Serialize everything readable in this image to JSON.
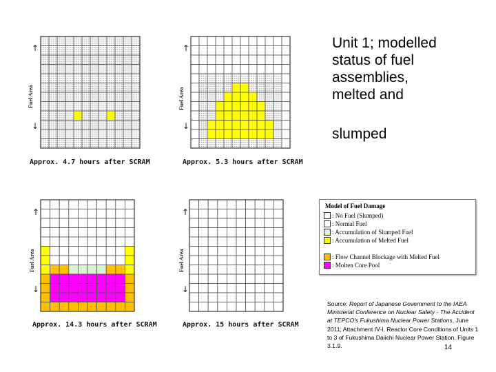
{
  "colors": {
    "grid_line": "#555555",
    "empty_cell": "#ffffff",
    "hatched_cell": "#d8d8d8",
    "no_fuel": "#ffffff",
    "normal_fuel": "#ffffff",
    "slumped": "#d6f5d0",
    "melted": "#ffff00",
    "flow_blockage": "#ffc000",
    "molten_pool": "#ff00ff"
  },
  "fuel_area_label": "Fuel Area",
  "panels": [
    {
      "caption": "Approx. 4.7 hours after SCRAM",
      "hatched": true,
      "cells": [
        {
          "r": 8,
          "c": 4,
          "s": "melted"
        },
        {
          "r": 8,
          "c": 8,
          "s": "melted"
        }
      ]
    },
    {
      "caption": "Approx. 5.3 hours after SCRAM",
      "hatched": true,
      "blank_top_rows": 4,
      "blank_cols": [
        0,
        11
      ],
      "cells": [
        {
          "r": 5,
          "c": 5,
          "s": "melted"
        },
        {
          "r": 5,
          "c": 6,
          "s": "melted"
        },
        {
          "r": 6,
          "c": 4,
          "s": "melted"
        },
        {
          "r": 6,
          "c": 5,
          "s": "melted"
        },
        {
          "r": 6,
          "c": 6,
          "s": "melted"
        },
        {
          "r": 6,
          "c": 7,
          "s": "melted"
        },
        {
          "r": 7,
          "c": 3,
          "s": "melted"
        },
        {
          "r": 7,
          "c": 4,
          "s": "melted"
        },
        {
          "r": 7,
          "c": 5,
          "s": "melted"
        },
        {
          "r": 7,
          "c": 6,
          "s": "melted"
        },
        {
          "r": 7,
          "c": 7,
          "s": "melted"
        },
        {
          "r": 7,
          "c": 8,
          "s": "melted"
        },
        {
          "r": 8,
          "c": 3,
          "s": "melted"
        },
        {
          "r": 8,
          "c": 4,
          "s": "melted"
        },
        {
          "r": 8,
          "c": 5,
          "s": "melted"
        },
        {
          "r": 8,
          "c": 6,
          "s": "melted"
        },
        {
          "r": 8,
          "c": 7,
          "s": "melted"
        },
        {
          "r": 8,
          "c": 8,
          "s": "melted"
        },
        {
          "r": 9,
          "c": 2,
          "s": "melted"
        },
        {
          "r": 9,
          "c": 3,
          "s": "melted"
        },
        {
          "r": 9,
          "c": 4,
          "s": "melted"
        },
        {
          "r": 9,
          "c": 5,
          "s": "melted"
        },
        {
          "r": 9,
          "c": 6,
          "s": "melted"
        },
        {
          "r": 9,
          "c": 7,
          "s": "melted"
        },
        {
          "r": 9,
          "c": 8,
          "s": "melted"
        },
        {
          "r": 9,
          "c": 9,
          "s": "melted"
        },
        {
          "r": 10,
          "c": 2,
          "s": "melted"
        },
        {
          "r": 10,
          "c": 3,
          "s": "melted"
        },
        {
          "r": 10,
          "c": 4,
          "s": "melted"
        },
        {
          "r": 10,
          "c": 5,
          "s": "melted"
        },
        {
          "r": 10,
          "c": 6,
          "s": "melted"
        },
        {
          "r": 10,
          "c": 7,
          "s": "melted"
        },
        {
          "r": 10,
          "c": 8,
          "s": "melted"
        },
        {
          "r": 10,
          "c": 9,
          "s": "melted"
        }
      ]
    },
    {
      "caption": "Approx. 14.3 hours after SCRAM",
      "hatched": false,
      "blank_top_rows": 5,
      "cells": [
        {
          "r": 5,
          "c": 0,
          "s": "melted"
        },
        {
          "r": 5,
          "c": 9,
          "s": "melted"
        },
        {
          "r": 6,
          "c": 0,
          "s": "melted"
        },
        {
          "r": 6,
          "c": 9,
          "s": "melted"
        },
        {
          "r": 7,
          "c": 0,
          "s": "melted"
        },
        {
          "r": 7,
          "c": 1,
          "s": "flow_blockage"
        },
        {
          "r": 7,
          "c": 2,
          "s": "flow_blockage"
        },
        {
          "r": 7,
          "c": 3,
          "s": "slumped"
        },
        {
          "r": 7,
          "c": 4,
          "s": "slumped"
        },
        {
          "r": 7,
          "c": 5,
          "s": "slumped"
        },
        {
          "r": 7,
          "c": 6,
          "s": "slumped"
        },
        {
          "r": 7,
          "c": 7,
          "s": "flow_blockage"
        },
        {
          "r": 7,
          "c": 8,
          "s": "flow_blockage"
        },
        {
          "r": 7,
          "c": 9,
          "s": "melted"
        },
        {
          "r": 8,
          "c": 0,
          "s": "flow_blockage"
        },
        {
          "r": 8,
          "c": 1,
          "s": "molten_pool"
        },
        {
          "r": 8,
          "c": 2,
          "s": "molten_pool"
        },
        {
          "r": 8,
          "c": 3,
          "s": "molten_pool"
        },
        {
          "r": 8,
          "c": 4,
          "s": "molten_pool"
        },
        {
          "r": 8,
          "c": 5,
          "s": "molten_pool"
        },
        {
          "r": 8,
          "c": 6,
          "s": "molten_pool"
        },
        {
          "r": 8,
          "c": 7,
          "s": "molten_pool"
        },
        {
          "r": 8,
          "c": 8,
          "s": "molten_pool"
        },
        {
          "r": 8,
          "c": 9,
          "s": "flow_blockage"
        },
        {
          "r": 9,
          "c": 0,
          "s": "flow_blockage"
        },
        {
          "r": 9,
          "c": 1,
          "s": "molten_pool"
        },
        {
          "r": 9,
          "c": 2,
          "s": "molten_pool"
        },
        {
          "r": 9,
          "c": 3,
          "s": "molten_pool"
        },
        {
          "r": 9,
          "c": 4,
          "s": "molten_pool"
        },
        {
          "r": 9,
          "c": 5,
          "s": "molten_pool"
        },
        {
          "r": 9,
          "c": 6,
          "s": "molten_pool"
        },
        {
          "r": 9,
          "c": 7,
          "s": "molten_pool"
        },
        {
          "r": 9,
          "c": 8,
          "s": "molten_pool"
        },
        {
          "r": 9,
          "c": 9,
          "s": "flow_blockage"
        },
        {
          "r": 10,
          "c": 0,
          "s": "flow_blockage"
        },
        {
          "r": 10,
          "c": 1,
          "s": "molten_pool"
        },
        {
          "r": 10,
          "c": 2,
          "s": "molten_pool"
        },
        {
          "r": 10,
          "c": 3,
          "s": "molten_pool"
        },
        {
          "r": 10,
          "c": 4,
          "s": "molten_pool"
        },
        {
          "r": 10,
          "c": 5,
          "s": "molten_pool"
        },
        {
          "r": 10,
          "c": 6,
          "s": "molten_pool"
        },
        {
          "r": 10,
          "c": 7,
          "s": "molten_pool"
        },
        {
          "r": 10,
          "c": 8,
          "s": "molten_pool"
        },
        {
          "r": 10,
          "c": 9,
          "s": "flow_blockage"
        },
        {
          "r": 11,
          "c": 0,
          "s": "flow_blockage"
        },
        {
          "r": 11,
          "c": 1,
          "s": "flow_blockage"
        },
        {
          "r": 11,
          "c": 2,
          "s": "flow_blockage"
        },
        {
          "r": 11,
          "c": 3,
          "s": "flow_blockage"
        },
        {
          "r": 11,
          "c": 4,
          "s": "flow_blockage"
        },
        {
          "r": 11,
          "c": 5,
          "s": "flow_blockage"
        },
        {
          "r": 11,
          "c": 6,
          "s": "flow_blockage"
        },
        {
          "r": 11,
          "c": 7,
          "s": "flow_blockage"
        },
        {
          "r": 11,
          "c": 8,
          "s": "flow_blockage"
        },
        {
          "r": 11,
          "c": 9,
          "s": "flow_blockage"
        }
      ]
    },
    {
      "caption": "Approx. 15 hours after SCRAM",
      "hatched": false,
      "cells": []
    }
  ],
  "title_lines": [
    "Unit 1; modelled",
    "status of fuel",
    "assemblies,",
    "melted and"
  ],
  "title_last_line": "slumped",
  "legend": {
    "title": "Model of Fuel Damage",
    "items": [
      {
        "key": "no_fuel",
        "label": ": No Fuel (Slumped)"
      },
      {
        "key": "normal_fuel",
        "label": ": Normal Fuel"
      },
      {
        "key": "slumped",
        "label": ": Accumulation of Slumped Fuel"
      },
      {
        "key": "melted",
        "label": ": Accumulation of Melted Fuel"
      },
      {
        "key": "flow_blockage",
        "label": ": Flow Channel Blockage with Melted Fuel"
      },
      {
        "key": "molten_pool",
        "label": ": Molten Core Pool"
      }
    ]
  },
  "source": {
    "prefix": "Source: ",
    "italic": "Report of Japanese Government to the IAEA Ministerial Conference on Nuclear Safety - The Accident at TEPCO's Fukushima Nuclear Power Stations",
    "rest": ", June 2011; Attachment IV-I, Reactor Core Conditions of Units 1 to 3 of Fukushima Daiichi Nuclear Power Station, Figure 3.1.9."
  },
  "page_number": "14"
}
